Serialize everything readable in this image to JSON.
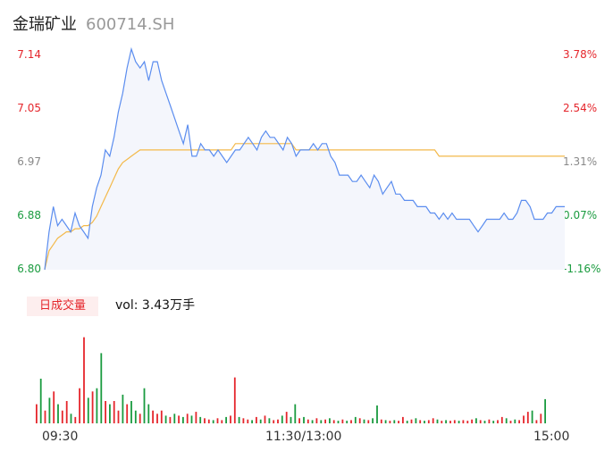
{
  "header": {
    "name": "金瑞矿业",
    "code": "600714.SH"
  },
  "volume": {
    "tag": "日成交量",
    "label": "vol: 3.43万手"
  },
  "colors": {
    "price": "#5b8def",
    "avg": "#f3b94a",
    "up": "#e5262c",
    "down": "#1a9b3f",
    "flat": "#888888",
    "fill": "#f4f6fc"
  },
  "chart_data": {
    "type": "line",
    "x_ticks": [
      "09:30",
      "11:30/13:00",
      "15:00"
    ],
    "y_ticks_price": [
      "7.14",
      "7.05",
      "6.97",
      "6.88",
      "6.80"
    ],
    "y_ticks_pct": [
      "3.78%",
      "2.54%",
      "1.31%",
      "0.07%",
      "-1.16%"
    ],
    "ylim": [
      6.8,
      7.14
    ],
    "prev_close": 6.875,
    "series": [
      {
        "values": [
          6.8,
          6.86,
          6.9,
          6.87,
          6.88,
          6.87,
          6.86,
          6.89,
          6.87,
          6.86,
          6.85,
          6.9,
          6.93,
          6.95,
          6.99,
          6.98,
          7.01,
          7.05,
          7.08,
          7.12,
          7.15,
          7.13,
          7.12,
          7.13,
          7.1,
          7.13,
          7.13,
          7.1,
          7.08,
          7.06,
          7.04,
          7.02,
          7.0,
          7.03,
          6.98,
          6.98,
          7.0,
          6.99,
          6.99,
          6.98,
          6.99,
          6.98,
          6.97,
          6.98,
          6.99,
          6.99,
          7.0,
          7.01,
          7.0,
          6.99,
          7.01,
          7.02,
          7.01,
          7.01,
          7.0,
          6.99,
          7.01,
          7.0,
          6.98,
          6.99,
          6.99,
          6.99,
          7.0,
          6.99,
          7.0,
          7.0,
          6.98,
          6.97,
          6.95,
          6.95,
          6.95,
          6.94,
          6.94,
          6.95,
          6.94,
          6.93,
          6.95,
          6.94,
          6.92,
          6.93,
          6.94,
          6.92,
          6.92,
          6.91,
          6.91,
          6.91,
          6.9,
          6.9,
          6.9,
          6.89,
          6.89,
          6.88,
          6.89,
          6.88,
          6.89,
          6.88,
          6.88,
          6.88,
          6.88,
          6.87,
          6.86,
          6.87,
          6.88,
          6.88,
          6.88,
          6.88,
          6.89,
          6.88,
          6.88,
          6.89,
          6.91,
          6.91,
          6.9,
          6.88,
          6.88,
          6.88,
          6.89,
          6.89,
          6.9,
          6.9,
          6.9
        ],
        "color_key": "price"
      },
      {
        "values": [
          6.8,
          6.83,
          6.84,
          6.85,
          6.855,
          6.86,
          6.86,
          6.865,
          6.865,
          6.87,
          6.87,
          6.875,
          6.885,
          6.9,
          6.915,
          6.93,
          6.945,
          6.96,
          6.97,
          6.975,
          6.98,
          6.985,
          6.99,
          6.99,
          6.99,
          6.99,
          6.99,
          6.99,
          6.99,
          6.99,
          6.99,
          6.99,
          6.99,
          6.99,
          6.99,
          6.99,
          6.99,
          6.99,
          6.99,
          6.99,
          6.99,
          6.99,
          6.99,
          6.99,
          7.0,
          7.0,
          7.0,
          7.0,
          7.0,
          7.0,
          7.0,
          7.0,
          7.0,
          7.0,
          7.0,
          7.0,
          7.0,
          7.0,
          6.99,
          6.99,
          6.99,
          6.99,
          6.99,
          6.99,
          6.99,
          6.99,
          6.99,
          6.99,
          6.99,
          6.99,
          6.99,
          6.99,
          6.99,
          6.99,
          6.99,
          6.99,
          6.99,
          6.99,
          6.99,
          6.99,
          6.99,
          6.99,
          6.99,
          6.99,
          6.99,
          6.99,
          6.99,
          6.99,
          6.99,
          6.99,
          6.99,
          6.98,
          6.98,
          6.98,
          6.98,
          6.98,
          6.98,
          6.98,
          6.98,
          6.98,
          6.98,
          6.98,
          6.98,
          6.98,
          6.98,
          6.98,
          6.98,
          6.98,
          6.98,
          6.98,
          6.98,
          6.98,
          6.98,
          6.98,
          6.98,
          6.98,
          6.98,
          6.98,
          6.98,
          6.98,
          6.98
        ],
        "color_key": "avg"
      }
    ],
    "volume_bars": [
      {
        "v": 0.3,
        "d": "u"
      },
      {
        "v": 0.7,
        "d": "d"
      },
      {
        "v": 0.2,
        "d": "u"
      },
      {
        "v": 0.4,
        "d": "d"
      },
      {
        "v": 0.5,
        "d": "u"
      },
      {
        "v": 0.3,
        "d": "d"
      },
      {
        "v": 0.2,
        "d": "u"
      },
      {
        "v": 0.35,
        "d": "u"
      },
      {
        "v": 0.15,
        "d": "d"
      },
      {
        "v": 0.1,
        "d": "u"
      },
      {
        "v": 0.55,
        "d": "u"
      },
      {
        "v": 1.35,
        "d": "u"
      },
      {
        "v": 0.4,
        "d": "d"
      },
      {
        "v": 0.5,
        "d": "u"
      },
      {
        "v": 0.55,
        "d": "d"
      },
      {
        "v": 1.1,
        "d": "d"
      },
      {
        "v": 0.35,
        "d": "u"
      },
      {
        "v": 0.3,
        "d": "d"
      },
      {
        "v": 0.35,
        "d": "u"
      },
      {
        "v": 0.2,
        "d": "u"
      },
      {
        "v": 0.45,
        "d": "d"
      },
      {
        "v": 0.3,
        "d": "u"
      },
      {
        "v": 0.35,
        "d": "d"
      },
      {
        "v": 0.2,
        "d": "d"
      },
      {
        "v": 0.15,
        "d": "u"
      },
      {
        "v": 0.55,
        "d": "d"
      },
      {
        "v": 0.3,
        "d": "d"
      },
      {
        "v": 0.2,
        "d": "u"
      },
      {
        "v": 0.15,
        "d": "u"
      },
      {
        "v": 0.2,
        "d": "u"
      },
      {
        "v": 0.12,
        "d": "d"
      },
      {
        "v": 0.1,
        "d": "u"
      },
      {
        "v": 0.15,
        "d": "d"
      },
      {
        "v": 0.12,
        "d": "u"
      },
      {
        "v": 0.1,
        "d": "d"
      },
      {
        "v": 0.15,
        "d": "u"
      },
      {
        "v": 0.12,
        "d": "d"
      },
      {
        "v": 0.18,
        "d": "u"
      },
      {
        "v": 0.1,
        "d": "d"
      },
      {
        "v": 0.08,
        "d": "u"
      },
      {
        "v": 0.06,
        "d": "u"
      },
      {
        "v": 0.05,
        "d": "d"
      },
      {
        "v": 0.08,
        "d": "u"
      },
      {
        "v": 0.05,
        "d": "u"
      },
      {
        "v": 0.1,
        "d": "d"
      },
      {
        "v": 0.12,
        "d": "u"
      },
      {
        "v": 0.72,
        "d": "u"
      },
      {
        "v": 0.1,
        "d": "d"
      },
      {
        "v": 0.08,
        "d": "u"
      },
      {
        "v": 0.06,
        "d": "u"
      },
      {
        "v": 0.05,
        "d": "d"
      },
      {
        "v": 0.1,
        "d": "u"
      },
      {
        "v": 0.06,
        "d": "d"
      },
      {
        "v": 0.12,
        "d": "u"
      },
      {
        "v": 0.08,
        "d": "d"
      },
      {
        "v": 0.05,
        "d": "u"
      },
      {
        "v": 0.06,
        "d": "u"
      },
      {
        "v": 0.12,
        "d": "d"
      },
      {
        "v": 0.18,
        "d": "u"
      },
      {
        "v": 0.1,
        "d": "d"
      },
      {
        "v": 0.3,
        "d": "d"
      },
      {
        "v": 0.08,
        "d": "u"
      },
      {
        "v": 0.1,
        "d": "d"
      },
      {
        "v": 0.06,
        "d": "u"
      },
      {
        "v": 0.05,
        "d": "d"
      },
      {
        "v": 0.08,
        "d": "u"
      },
      {
        "v": 0.05,
        "d": "d"
      },
      {
        "v": 0.06,
        "d": "u"
      },
      {
        "v": 0.08,
        "d": "d"
      },
      {
        "v": 0.05,
        "d": "u"
      },
      {
        "v": 0.04,
        "d": "d"
      },
      {
        "v": 0.06,
        "d": "u"
      },
      {
        "v": 0.04,
        "d": "d"
      },
      {
        "v": 0.05,
        "d": "u"
      },
      {
        "v": 0.1,
        "d": "d"
      },
      {
        "v": 0.08,
        "d": "u"
      },
      {
        "v": 0.06,
        "d": "d"
      },
      {
        "v": 0.05,
        "d": "u"
      },
      {
        "v": 0.08,
        "d": "d"
      },
      {
        "v": 0.28,
        "d": "d"
      },
      {
        "v": 0.06,
        "d": "u"
      },
      {
        "v": 0.05,
        "d": "d"
      },
      {
        "v": 0.04,
        "d": "u"
      },
      {
        "v": 0.05,
        "d": "d"
      },
      {
        "v": 0.04,
        "d": "u"
      },
      {
        "v": 0.1,
        "d": "u"
      },
      {
        "v": 0.04,
        "d": "d"
      },
      {
        "v": 0.06,
        "d": "u"
      },
      {
        "v": 0.08,
        "d": "d"
      },
      {
        "v": 0.05,
        "d": "u"
      },
      {
        "v": 0.04,
        "d": "d"
      },
      {
        "v": 0.05,
        "d": "u"
      },
      {
        "v": 0.08,
        "d": "u"
      },
      {
        "v": 0.06,
        "d": "d"
      },
      {
        "v": 0.04,
        "d": "u"
      },
      {
        "v": 0.05,
        "d": "d"
      },
      {
        "v": 0.04,
        "d": "u"
      },
      {
        "v": 0.05,
        "d": "u"
      },
      {
        "v": 0.04,
        "d": "d"
      },
      {
        "v": 0.05,
        "d": "u"
      },
      {
        "v": 0.04,
        "d": "u"
      },
      {
        "v": 0.06,
        "d": "u"
      },
      {
        "v": 0.08,
        "d": "d"
      },
      {
        "v": 0.05,
        "d": "u"
      },
      {
        "v": 0.04,
        "d": "d"
      },
      {
        "v": 0.06,
        "d": "u"
      },
      {
        "v": 0.04,
        "d": "d"
      },
      {
        "v": 0.05,
        "d": "u"
      },
      {
        "v": 0.1,
        "d": "u"
      },
      {
        "v": 0.08,
        "d": "d"
      },
      {
        "v": 0.04,
        "d": "u"
      },
      {
        "v": 0.06,
        "d": "d"
      },
      {
        "v": 0.05,
        "d": "u"
      },
      {
        "v": 0.12,
        "d": "u"
      },
      {
        "v": 0.18,
        "d": "u"
      },
      {
        "v": 0.2,
        "d": "d"
      },
      {
        "v": 0.05,
        "d": "u"
      },
      {
        "v": 0.15,
        "d": "u"
      },
      {
        "v": 0.38,
        "d": "d"
      }
    ]
  }
}
